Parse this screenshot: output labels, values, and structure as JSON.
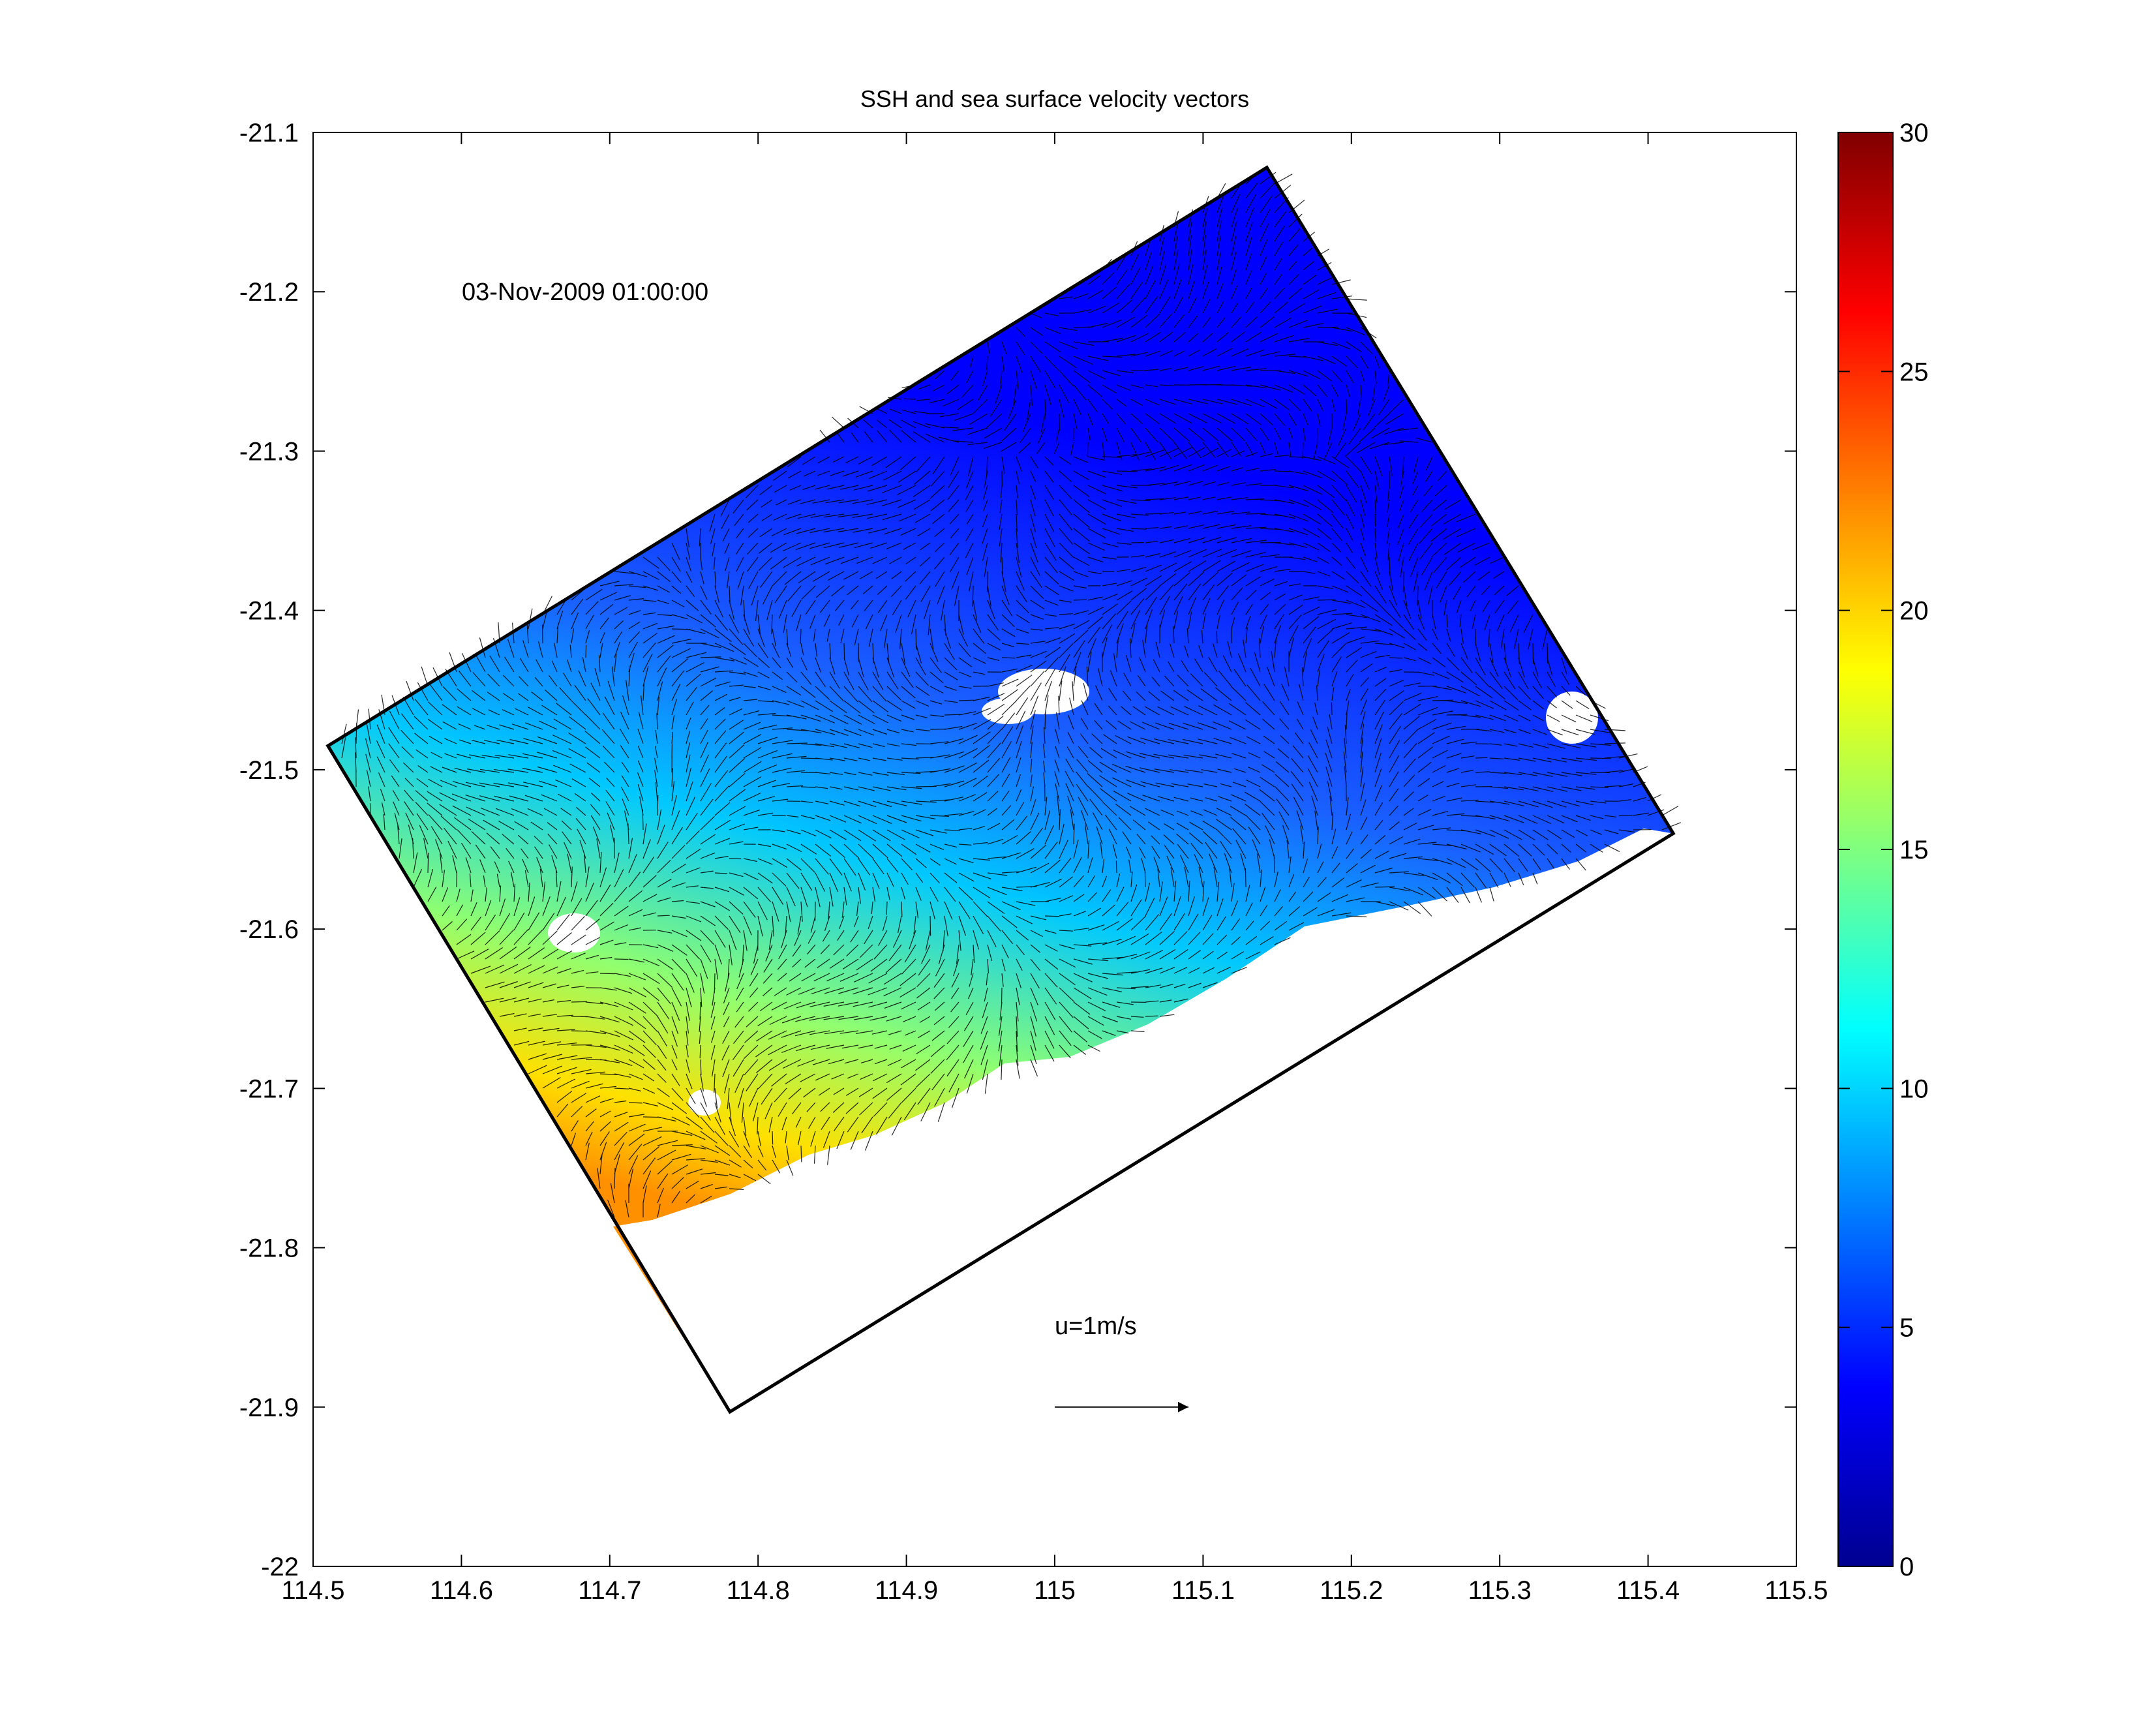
{
  "chart_data": {
    "type": "heatmap",
    "title": "SSH and sea surface velocity vectors",
    "xlabel": "",
    "ylabel": "",
    "xlim": [
      114.5,
      115.5
    ],
    "ylim": [
      -22,
      -21.1
    ],
    "x_ticks": [
      "114.5",
      "114.6",
      "114.7",
      "114.8",
      "114.9",
      "115",
      "115.1",
      "115.2",
      "115.3",
      "115.4",
      "115.5"
    ],
    "y_ticks": [
      "-21.1",
      "-21.2",
      "-21.3",
      "-21.4",
      "-21.5",
      "-21.6",
      "-21.7",
      "-21.8",
      "-21.9",
      "-22"
    ],
    "timestamp": "03-Nov-2009 01:00:00",
    "reference_vector": {
      "label": "u=1m/s",
      "u": 1,
      "x": 115.0,
      "y": -21.9
    },
    "domain_corners": [
      {
        "x": 114.51,
        "y": -21.485
      },
      {
        "x": 115.143,
        "y": -21.122
      },
      {
        "x": 115.417,
        "y": -21.54
      },
      {
        "x": 114.781,
        "y": -21.903
      }
    ],
    "colorbar": {
      "colormap": "jet",
      "range": [
        0,
        30
      ],
      "ticks": [
        "0",
        "5",
        "10",
        "15",
        "20",
        "25",
        "30"
      ],
      "colors": [
        "#00008F",
        "#0000FF",
        "#0080FF",
        "#00FFFF",
        "#80FF80",
        "#FFFF00",
        "#FF8000",
        "#FF0000",
        "#800000"
      ]
    }
  }
}
